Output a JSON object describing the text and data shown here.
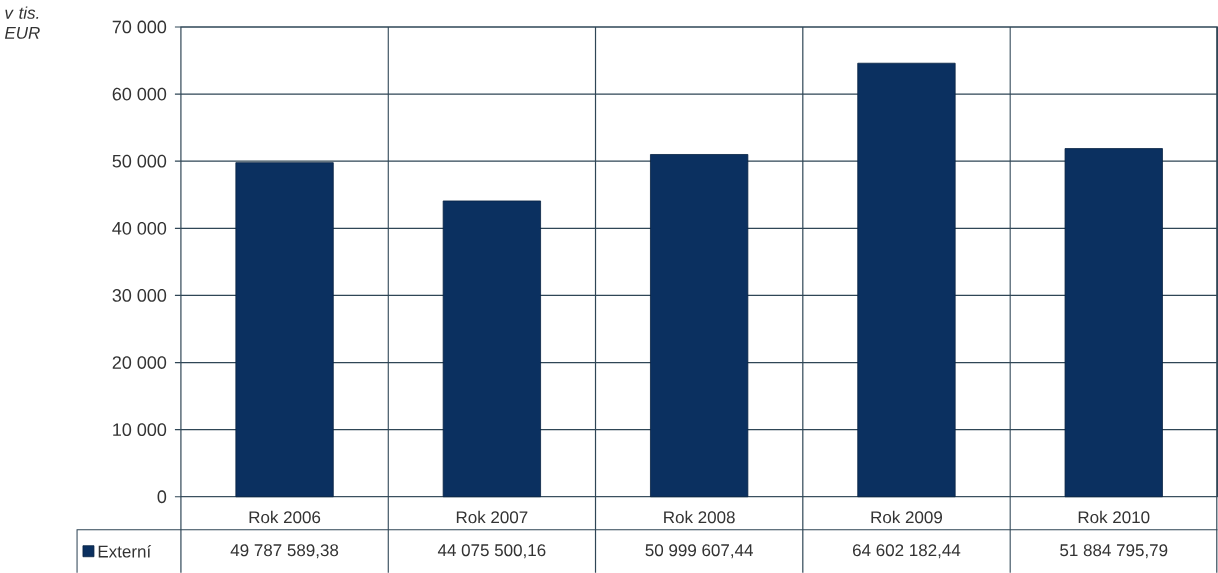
{
  "chart_data": {
    "type": "bar",
    "ylabel": "v tis. EUR",
    "categories": [
      "Rok 2006",
      "Rok 2007",
      "Rok 2008",
      "Rok 2009",
      "Rok 2010"
    ],
    "series": [
      {
        "name": "Externí",
        "color": "#0b3060",
        "values": [
          49787.58938,
          44075.50016,
          50999.60744,
          64602.18244,
          51884.79579
        ]
      }
    ],
    "annotations": [
      "49 787 589,38",
      "44 075 500,16",
      "50 999 607,44",
      "64 602 182,44",
      "51 884 795,79"
    ],
    "ylim": [
      0,
      70000
    ],
    "yticks": [
      {
        "value": 0,
        "label": "0"
      },
      {
        "value": 10000,
        "label": "10 000"
      },
      {
        "value": 20000,
        "label": "20 000"
      },
      {
        "value": 30000,
        "label": "30 000"
      },
      {
        "value": 40000,
        "label": "40 000"
      },
      {
        "value": 50000,
        "label": "50 000"
      },
      {
        "value": 60000,
        "label": "60 000"
      },
      {
        "value": 70000,
        "label": "70 000"
      }
    ],
    "grid": true,
    "legend": "bottom left"
  }
}
